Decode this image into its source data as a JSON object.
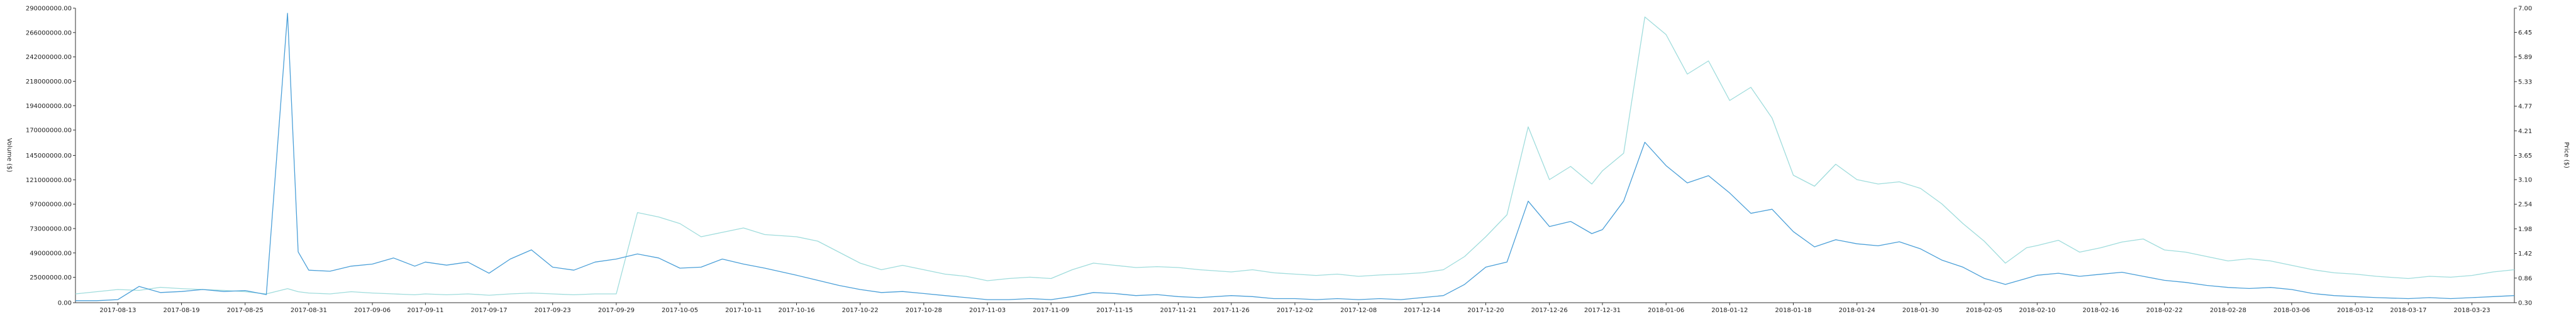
{
  "chart_data": {
    "type": "line",
    "title": "",
    "ylabel_left": "Volume ($)",
    "ylabel_right": "Price ($)",
    "x_tick_labels": [
      "2017-08-13",
      "2017-08-19",
      "2017-08-25",
      "2017-08-31",
      "2017-09-06",
      "2017-09-11",
      "2017-09-17",
      "2017-09-23",
      "2017-09-29",
      "2017-10-05",
      "2017-10-11",
      "2017-10-16",
      "2017-10-22",
      "2017-10-28",
      "2017-11-03",
      "2017-11-09",
      "2017-11-15",
      "2017-11-21",
      "2017-11-26",
      "2017-12-02",
      "2017-12-08",
      "2017-12-14",
      "2017-12-20",
      "2017-12-26",
      "2017-12-31",
      "2018-01-06",
      "2018-01-12",
      "2018-01-18",
      "2018-01-24",
      "2018-01-30",
      "2018-02-05",
      "2018-02-10",
      "2018-02-16",
      "2018-02-22",
      "2018-02-28",
      "2018-03-06",
      "2018-03-12",
      "2018-03-17",
      "2018-03-23"
    ],
    "y_left_ticks": [
      "0.00",
      "25000000.00",
      "49000000.00",
      "73000000.00",
      "97000000.00",
      "121000000.00",
      "145000000.00",
      "170000000.00",
      "194000000.00",
      "218000000.00",
      "242000000.00",
      "266000000.00",
      "290000000.00"
    ],
    "y_right_ticks": [
      "0.30",
      "0.86",
      "1.42",
      "1.98",
      "2.54",
      "3.10",
      "3.65",
      "4.21",
      "4.77",
      "5.33",
      "5.89",
      "6.45",
      "7.00"
    ],
    "ylim_left": [
      0,
      290000000
    ],
    "ylim_right": [
      0.3,
      7.0
    ],
    "x_start": "2017-08-09",
    "x_end": "2018-03-27",
    "grid": false,
    "series": [
      {
        "name": "",
        "axis": "left",
        "color": "#4a9fd8",
        "points": [
          [
            "2017-08-09",
            2000000
          ],
          [
            "2017-08-11",
            2000000
          ],
          [
            "2017-08-13",
            3000000
          ],
          [
            "2017-08-15",
            16000000
          ],
          [
            "2017-08-17",
            10000000
          ],
          [
            "2017-08-19",
            11000000
          ],
          [
            "2017-08-21",
            13000000
          ],
          [
            "2017-08-23",
            11000000
          ],
          [
            "2017-08-25",
            12000000
          ],
          [
            "2017-08-27",
            8000000
          ],
          [
            "2017-08-29",
            285000000
          ],
          [
            "2017-08-30",
            50000000
          ],
          [
            "2017-08-31",
            32000000
          ],
          [
            "2017-09-02",
            31000000
          ],
          [
            "2017-09-04",
            36000000
          ],
          [
            "2017-09-06",
            38000000
          ],
          [
            "2017-09-08",
            44000000
          ],
          [
            "2017-09-10",
            36000000
          ],
          [
            "2017-09-11",
            40000000
          ],
          [
            "2017-09-13",
            37000000
          ],
          [
            "2017-09-15",
            40000000
          ],
          [
            "2017-09-17",
            29000000
          ],
          [
            "2017-09-19",
            43000000
          ],
          [
            "2017-09-21",
            52000000
          ],
          [
            "2017-09-23",
            35000000
          ],
          [
            "2017-09-25",
            32000000
          ],
          [
            "2017-09-27",
            40000000
          ],
          [
            "2017-09-29",
            43000000
          ],
          [
            "2017-10-01",
            48000000
          ],
          [
            "2017-10-03",
            44000000
          ],
          [
            "2017-10-05",
            34000000
          ],
          [
            "2017-10-07",
            35000000
          ],
          [
            "2017-10-09",
            43000000
          ],
          [
            "2017-10-11",
            38000000
          ],
          [
            "2017-10-13",
            34000000
          ],
          [
            "2017-10-16",
            27000000
          ],
          [
            "2017-10-18",
            22000000
          ],
          [
            "2017-10-20",
            17000000
          ],
          [
            "2017-10-22",
            13000000
          ],
          [
            "2017-10-24",
            10000000
          ],
          [
            "2017-10-26",
            11000000
          ],
          [
            "2017-10-28",
            9000000
          ],
          [
            "2017-10-30",
            7000000
          ],
          [
            "2017-11-01",
            5000000
          ],
          [
            "2017-11-03",
            3000000
          ],
          [
            "2017-11-05",
            3000000
          ],
          [
            "2017-11-07",
            4000000
          ],
          [
            "2017-11-09",
            3000000
          ],
          [
            "2017-11-11",
            6000000
          ],
          [
            "2017-11-13",
            10000000
          ],
          [
            "2017-11-15",
            9000000
          ],
          [
            "2017-11-17",
            7000000
          ],
          [
            "2017-11-19",
            8000000
          ],
          [
            "2017-11-21",
            6000000
          ],
          [
            "2017-11-23",
            5000000
          ],
          [
            "2017-11-26",
            7000000
          ],
          [
            "2017-11-28",
            6000000
          ],
          [
            "2017-11-30",
            4000000
          ],
          [
            "2017-12-02",
            4000000
          ],
          [
            "2017-12-04",
            3000000
          ],
          [
            "2017-12-06",
            4000000
          ],
          [
            "2017-12-08",
            3000000
          ],
          [
            "2017-12-10",
            4000000
          ],
          [
            "2017-12-12",
            3000000
          ],
          [
            "2017-12-14",
            5000000
          ],
          [
            "2017-12-16",
            7000000
          ],
          [
            "2017-12-18",
            18000000
          ],
          [
            "2017-12-20",
            35000000
          ],
          [
            "2017-12-22",
            40000000
          ],
          [
            "2017-12-24",
            100000000
          ],
          [
            "2017-12-26",
            75000000
          ],
          [
            "2017-12-28",
            80000000
          ],
          [
            "2017-12-30",
            68000000
          ],
          [
            "2017-12-31",
            72000000
          ],
          [
            "2018-01-02",
            100000000
          ],
          [
            "2018-01-04",
            158000000
          ],
          [
            "2018-01-06",
            135000000
          ],
          [
            "2018-01-08",
            118000000
          ],
          [
            "2018-01-10",
            125000000
          ],
          [
            "2018-01-12",
            108000000
          ],
          [
            "2018-01-14",
            88000000
          ],
          [
            "2018-01-16",
            92000000
          ],
          [
            "2018-01-18",
            70000000
          ],
          [
            "2018-01-20",
            55000000
          ],
          [
            "2018-01-22",
            62000000
          ],
          [
            "2018-01-24",
            58000000
          ],
          [
            "2018-01-26",
            56000000
          ],
          [
            "2018-01-28",
            60000000
          ],
          [
            "2018-01-30",
            53000000
          ],
          [
            "2018-02-01",
            42000000
          ],
          [
            "2018-02-03",
            35000000
          ],
          [
            "2018-02-05",
            24000000
          ],
          [
            "2018-02-07",
            18000000
          ],
          [
            "2018-02-09",
            24000000
          ],
          [
            "2018-02-10",
            27000000
          ],
          [
            "2018-02-12",
            29000000
          ],
          [
            "2018-02-14",
            26000000
          ],
          [
            "2018-02-16",
            28000000
          ],
          [
            "2018-02-18",
            30000000
          ],
          [
            "2018-02-20",
            26000000
          ],
          [
            "2018-02-22",
            22000000
          ],
          [
            "2018-02-24",
            20000000
          ],
          [
            "2018-02-26",
            17000000
          ],
          [
            "2018-02-28",
            15000000
          ],
          [
            "2018-03-02",
            14000000
          ],
          [
            "2018-03-04",
            15000000
          ],
          [
            "2018-03-06",
            13000000
          ],
          [
            "2018-03-08",
            9000000
          ],
          [
            "2018-03-10",
            7000000
          ],
          [
            "2018-03-12",
            6000000
          ],
          [
            "2018-03-14",
            5000000
          ],
          [
            "2018-03-17",
            4000000
          ],
          [
            "2018-03-19",
            5000000
          ],
          [
            "2018-03-21",
            4000000
          ],
          [
            "2018-03-23",
            5000000
          ],
          [
            "2018-03-25",
            6000000
          ],
          [
            "2018-03-27",
            7000000
          ]
        ]
      },
      {
        "name": "",
        "axis": "right",
        "color": "#9fdcdc",
        "points": [
          [
            "2017-08-09",
            0.5
          ],
          [
            "2017-08-11",
            0.55
          ],
          [
            "2017-08-13",
            0.6
          ],
          [
            "2017-08-15",
            0.58
          ],
          [
            "2017-08-17",
            0.65
          ],
          [
            "2017-08-19",
            0.62
          ],
          [
            "2017-08-21",
            0.6
          ],
          [
            "2017-08-23",
            0.58
          ],
          [
            "2017-08-25",
            0.55
          ],
          [
            "2017-08-27",
            0.5
          ],
          [
            "2017-08-29",
            0.62
          ],
          [
            "2017-08-30",
            0.55
          ],
          [
            "2017-08-31",
            0.52
          ],
          [
            "2017-09-02",
            0.5
          ],
          [
            "2017-09-04",
            0.55
          ],
          [
            "2017-09-06",
            0.52
          ],
          [
            "2017-09-08",
            0.5
          ],
          [
            "2017-09-10",
            0.48
          ],
          [
            "2017-09-11",
            0.5
          ],
          [
            "2017-09-13",
            0.48
          ],
          [
            "2017-09-15",
            0.5
          ],
          [
            "2017-09-17",
            0.47
          ],
          [
            "2017-09-19",
            0.5
          ],
          [
            "2017-09-21",
            0.52
          ],
          [
            "2017-09-23",
            0.5
          ],
          [
            "2017-09-25",
            0.48
          ],
          [
            "2017-09-27",
            0.5
          ],
          [
            "2017-09-29",
            0.5
          ],
          [
            "2017-10-01",
            2.35
          ],
          [
            "2017-10-03",
            2.25
          ],
          [
            "2017-10-05",
            2.1
          ],
          [
            "2017-10-07",
            1.8
          ],
          [
            "2017-10-09",
            1.9
          ],
          [
            "2017-10-11",
            2.0
          ],
          [
            "2017-10-13",
            1.85
          ],
          [
            "2017-10-16",
            1.8
          ],
          [
            "2017-10-18",
            1.7
          ],
          [
            "2017-10-20",
            1.45
          ],
          [
            "2017-10-22",
            1.2
          ],
          [
            "2017-10-24",
            1.05
          ],
          [
            "2017-10-26",
            1.15
          ],
          [
            "2017-10-28",
            1.05
          ],
          [
            "2017-10-30",
            0.95
          ],
          [
            "2017-11-01",
            0.9
          ],
          [
            "2017-11-03",
            0.8
          ],
          [
            "2017-11-05",
            0.85
          ],
          [
            "2017-11-07",
            0.88
          ],
          [
            "2017-11-09",
            0.85
          ],
          [
            "2017-11-11",
            1.05
          ],
          [
            "2017-11-13",
            1.2
          ],
          [
            "2017-11-15",
            1.15
          ],
          [
            "2017-11-17",
            1.1
          ],
          [
            "2017-11-19",
            1.12
          ],
          [
            "2017-11-21",
            1.1
          ],
          [
            "2017-11-23",
            1.05
          ],
          [
            "2017-11-26",
            1.0
          ],
          [
            "2017-11-28",
            1.05
          ],
          [
            "2017-11-30",
            0.98
          ],
          [
            "2017-12-02",
            0.95
          ],
          [
            "2017-12-04",
            0.92
          ],
          [
            "2017-12-06",
            0.95
          ],
          [
            "2017-12-08",
            0.9
          ],
          [
            "2017-12-10",
            0.93
          ],
          [
            "2017-12-12",
            0.95
          ],
          [
            "2017-12-14",
            0.98
          ],
          [
            "2017-12-16",
            1.05
          ],
          [
            "2017-12-18",
            1.35
          ],
          [
            "2017-12-20",
            1.8
          ],
          [
            "2017-12-22",
            2.3
          ],
          [
            "2017-12-24",
            4.3
          ],
          [
            "2017-12-26",
            3.1
          ],
          [
            "2017-12-28",
            3.4
          ],
          [
            "2017-12-30",
            3.0
          ],
          [
            "2017-12-31",
            3.3
          ],
          [
            "2018-01-02",
            3.7
          ],
          [
            "2018-01-04",
            6.8
          ],
          [
            "2018-01-06",
            6.4
          ],
          [
            "2018-01-08",
            5.5
          ],
          [
            "2018-01-10",
            5.8
          ],
          [
            "2018-01-12",
            4.9
          ],
          [
            "2018-01-14",
            5.2
          ],
          [
            "2018-01-16",
            4.5
          ],
          [
            "2018-01-18",
            3.2
          ],
          [
            "2018-01-20",
            2.95
          ],
          [
            "2018-01-22",
            3.45
          ],
          [
            "2018-01-24",
            3.1
          ],
          [
            "2018-01-26",
            3.0
          ],
          [
            "2018-01-28",
            3.05
          ],
          [
            "2018-01-30",
            2.9
          ],
          [
            "2018-02-01",
            2.55
          ],
          [
            "2018-02-03",
            2.1
          ],
          [
            "2018-02-05",
            1.7
          ],
          [
            "2018-02-07",
            1.2
          ],
          [
            "2018-02-09",
            1.55
          ],
          [
            "2018-02-10",
            1.6
          ],
          [
            "2018-02-12",
            1.72
          ],
          [
            "2018-02-14",
            1.45
          ],
          [
            "2018-02-16",
            1.55
          ],
          [
            "2018-02-18",
            1.68
          ],
          [
            "2018-02-20",
            1.75
          ],
          [
            "2018-02-22",
            1.5
          ],
          [
            "2018-02-24",
            1.45
          ],
          [
            "2018-02-26",
            1.35
          ],
          [
            "2018-02-28",
            1.25
          ],
          [
            "2018-03-02",
            1.3
          ],
          [
            "2018-03-04",
            1.25
          ],
          [
            "2018-03-06",
            1.15
          ],
          [
            "2018-03-08",
            1.05
          ],
          [
            "2018-03-10",
            0.98
          ],
          [
            "2018-03-12",
            0.95
          ],
          [
            "2018-03-14",
            0.9
          ],
          [
            "2018-03-17",
            0.85
          ],
          [
            "2018-03-19",
            0.9
          ],
          [
            "2018-03-21",
            0.88
          ],
          [
            "2018-03-23",
            0.92
          ],
          [
            "2018-03-25",
            1.0
          ],
          [
            "2018-03-27",
            1.05
          ]
        ]
      }
    ]
  }
}
